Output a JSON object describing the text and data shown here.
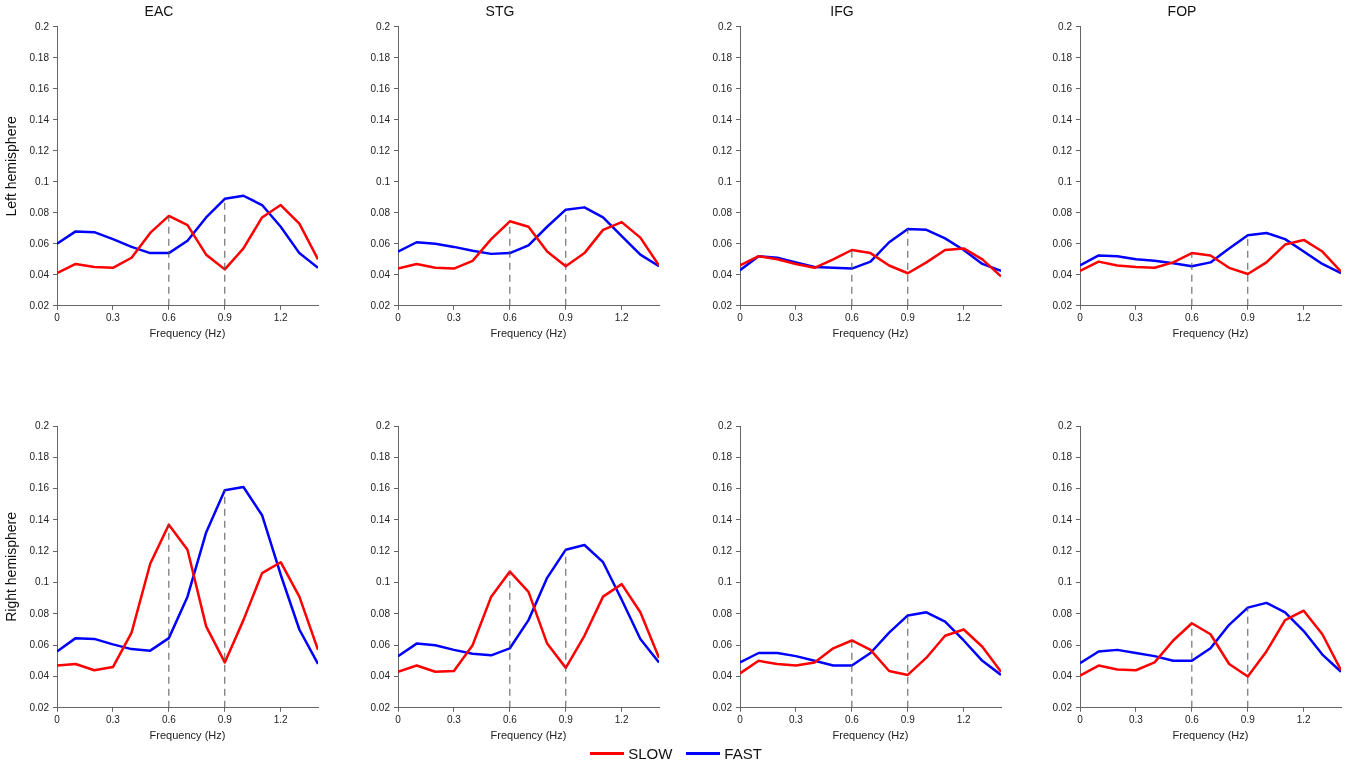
{
  "chart_data": [
    {
      "type": "line",
      "title": "EAC",
      "ylabel": "Left hemisphere",
      "xlabel": "Frequency (Hz)",
      "x": [
        0,
        0.1,
        0.2,
        0.3,
        0.4,
        0.5,
        0.6,
        0.7,
        0.8,
        0.9,
        1,
        1.1,
        1.2,
        1.3,
        1.4
      ],
      "xlim": [
        0,
        1.4
      ],
      "xticks": [
        0,
        0.3,
        0.6,
        0.9,
        1.2
      ],
      "ylim": [
        0.02,
        0.2
      ],
      "yticks": [
        0.02,
        0.04,
        0.06,
        0.08,
        0.1,
        0.12,
        0.14,
        0.16,
        0.18,
        0.2
      ],
      "legend": "bottom",
      "line_style": "solid",
      "ref_lines": [
        {
          "axis": "x",
          "value": 0.6,
          "color": "#555555",
          "line_style": "dashed"
        },
        {
          "axis": "x",
          "value": 0.9,
          "color": "#555555",
          "line_style": "dashed"
        }
      ],
      "series": [
        {
          "name": "SLOW",
          "color": "#ff0000",
          "values": [
            0.041,
            0.047,
            0.045,
            0.0445,
            0.051,
            0.067,
            0.078,
            0.072,
            0.053,
            0.0435,
            0.057,
            0.077,
            0.085,
            0.073,
            0.05
          ]
        },
        {
          "name": "FAST",
          "color": "#0000ff",
          "values": [
            0.06,
            0.068,
            0.0675,
            0.063,
            0.058,
            0.054,
            0.054,
            0.062,
            0.077,
            0.089,
            0.091,
            0.085,
            0.071,
            0.054,
            0.0445
          ]
        }
      ]
    },
    {
      "type": "line",
      "title": "STG",
      "xlabel": "Frequency (Hz)",
      "x": [
        0,
        0.1,
        0.2,
        0.3,
        0.4,
        0.5,
        0.6,
        0.7,
        0.8,
        0.9,
        1,
        1.1,
        1.2,
        1.3,
        1.4
      ],
      "xlim": [
        0,
        1.4
      ],
      "xticks": [
        0,
        0.3,
        0.6,
        0.9,
        1.2
      ],
      "ylim": [
        0.02,
        0.2
      ],
      "yticks": [
        0.02,
        0.04,
        0.06,
        0.08,
        0.1,
        0.12,
        0.14,
        0.16,
        0.18,
        0.2
      ],
      "legend": "bottom",
      "line_style": "solid",
      "ref_lines": [
        {
          "axis": "x",
          "value": 0.6,
          "color": "#555555",
          "line_style": "dashed"
        },
        {
          "axis": "x",
          "value": 0.9,
          "color": "#555555",
          "line_style": "dashed"
        }
      ],
      "series": [
        {
          "name": "SLOW",
          "color": "#ff0000",
          "values": [
            0.044,
            0.047,
            0.0445,
            0.044,
            0.049,
            0.063,
            0.0745,
            0.071,
            0.055,
            0.0455,
            0.054,
            0.069,
            0.074,
            0.064,
            0.046
          ]
        },
        {
          "name": "FAST",
          "color": "#0000ff",
          "values": [
            0.055,
            0.061,
            0.06,
            0.058,
            0.0555,
            0.0535,
            0.054,
            0.059,
            0.071,
            0.082,
            0.0835,
            0.077,
            0.065,
            0.053,
            0.0455
          ]
        }
      ]
    },
    {
      "type": "line",
      "title": "IFG",
      "xlabel": "Frequency (Hz)",
      "x": [
        0,
        0.1,
        0.2,
        0.3,
        0.4,
        0.5,
        0.6,
        0.7,
        0.8,
        0.9,
        1,
        1.1,
        1.2,
        1.3,
        1.4
      ],
      "xlim": [
        0,
        1.4
      ],
      "xticks": [
        0,
        0.3,
        0.6,
        0.9,
        1.2
      ],
      "ylim": [
        0.02,
        0.2
      ],
      "yticks": [
        0.02,
        0.04,
        0.06,
        0.08,
        0.1,
        0.12,
        0.14,
        0.16,
        0.18,
        0.2
      ],
      "legend": "bottom",
      "line_style": "solid",
      "ref_lines": [
        {
          "axis": "x",
          "value": 0.6,
          "color": "#555555",
          "line_style": "dashed"
        },
        {
          "axis": "x",
          "value": 0.9,
          "color": "#555555",
          "line_style": "dashed"
        }
      ],
      "series": [
        {
          "name": "SLOW",
          "color": "#ff0000",
          "values": [
            0.046,
            0.052,
            0.05,
            0.047,
            0.0445,
            0.05,
            0.056,
            0.054,
            0.046,
            0.041,
            0.048,
            0.056,
            0.057,
            0.05,
            0.039
          ]
        },
        {
          "name": "FAST",
          "color": "#0000ff",
          "values": [
            0.043,
            0.052,
            0.051,
            0.048,
            0.045,
            0.0445,
            0.044,
            0.0485,
            0.061,
            0.0695,
            0.069,
            0.0635,
            0.056,
            0.047,
            0.0425
          ]
        }
      ]
    },
    {
      "type": "line",
      "title": "FOP",
      "xlabel": "Frequency (Hz)",
      "x": [
        0,
        0.1,
        0.2,
        0.3,
        0.4,
        0.5,
        0.6,
        0.7,
        0.8,
        0.9,
        1,
        1.1,
        1.2,
        1.3,
        1.4
      ],
      "xlim": [
        0,
        1.4
      ],
      "xticks": [
        0,
        0.3,
        0.6,
        0.9,
        1.2
      ],
      "ylim": [
        0.02,
        0.2
      ],
      "yticks": [
        0.02,
        0.04,
        0.06,
        0.08,
        0.1,
        0.12,
        0.14,
        0.16,
        0.18,
        0.2
      ],
      "legend": "bottom",
      "line_style": "solid",
      "ref_lines": [
        {
          "axis": "x",
          "value": 0.6,
          "color": "#555555",
          "line_style": "dashed"
        },
        {
          "axis": "x",
          "value": 0.9,
          "color": "#555555",
          "line_style": "dashed"
        }
      ],
      "series": [
        {
          "name": "SLOW",
          "color": "#ff0000",
          "values": [
            0.0425,
            0.0485,
            0.046,
            0.045,
            0.0445,
            0.048,
            0.054,
            0.0525,
            0.0445,
            0.0405,
            0.048,
            0.0595,
            0.0625,
            0.055,
            0.042
          ]
        },
        {
          "name": "FAST",
          "color": "#0000ff",
          "values": [
            0.046,
            0.0525,
            0.052,
            0.05,
            0.049,
            0.0475,
            0.0455,
            0.048,
            0.057,
            0.0655,
            0.067,
            0.063,
            0.055,
            0.047,
            0.041
          ]
        }
      ]
    },
    {
      "type": "line",
      "ylabel": "Right hemisphere",
      "xlabel": "Frequency (Hz)",
      "x": [
        0,
        0.1,
        0.2,
        0.3,
        0.4,
        0.5,
        0.6,
        0.7,
        0.8,
        0.9,
        1,
        1.1,
        1.2,
        1.3,
        1.4
      ],
      "xlim": [
        0,
        1.4
      ],
      "xticks": [
        0,
        0.3,
        0.6,
        0.9,
        1.2
      ],
      "ylim": [
        0.02,
        0.2
      ],
      "yticks": [
        0.02,
        0.04,
        0.06,
        0.08,
        0.1,
        0.12,
        0.14,
        0.16,
        0.18,
        0.2
      ],
      "legend": "bottom",
      "line_style": "solid",
      "ref_lines": [
        {
          "axis": "x",
          "value": 0.6,
          "color": "#555555",
          "line_style": "dashed"
        },
        {
          "axis": "x",
          "value": 0.9,
          "color": "#555555",
          "line_style": "dashed"
        }
      ],
      "series": [
        {
          "name": "SLOW",
          "color": "#ff0000",
          "values": [
            0.047,
            0.048,
            0.044,
            0.046,
            0.068,
            0.112,
            0.137,
            0.121,
            0.072,
            0.049,
            0.076,
            0.106,
            0.113,
            0.091,
            0.057
          ]
        },
        {
          "name": "FAST",
          "color": "#0000ff",
          "values": [
            0.056,
            0.0645,
            0.064,
            0.0605,
            0.0575,
            0.0565,
            0.0645,
            0.091,
            0.132,
            0.159,
            0.161,
            0.143,
            0.105,
            0.07,
            0.048
          ]
        }
      ]
    },
    {
      "type": "line",
      "xlabel": "Frequency (Hz)",
      "x": [
        0,
        0.1,
        0.2,
        0.3,
        0.4,
        0.5,
        0.6,
        0.7,
        0.8,
        0.9,
        1,
        1.1,
        1.2,
        1.3,
        1.4
      ],
      "xlim": [
        0,
        1.4
      ],
      "xticks": [
        0,
        0.3,
        0.6,
        0.9,
        1.2
      ],
      "ylim": [
        0.02,
        0.2
      ],
      "yticks": [
        0.02,
        0.04,
        0.06,
        0.08,
        0.1,
        0.12,
        0.14,
        0.16,
        0.18,
        0.2
      ],
      "legend": "bottom",
      "line_style": "solid",
      "ref_lines": [
        {
          "axis": "x",
          "value": 0.6,
          "color": "#555555",
          "line_style": "dashed"
        },
        {
          "axis": "x",
          "value": 0.9,
          "color": "#555555",
          "line_style": "dashed"
        }
      ],
      "series": [
        {
          "name": "SLOW",
          "color": "#ff0000",
          "values": [
            0.043,
            0.047,
            0.043,
            0.0435,
            0.06,
            0.091,
            0.107,
            0.094,
            0.061,
            0.0455,
            0.066,
            0.091,
            0.099,
            0.081,
            0.052
          ]
        },
        {
          "name": "FAST",
          "color": "#0000ff",
          "values": [
            0.053,
            0.061,
            0.06,
            0.057,
            0.0545,
            0.0535,
            0.058,
            0.076,
            0.103,
            0.121,
            0.124,
            0.113,
            0.089,
            0.064,
            0.049
          ]
        }
      ]
    },
    {
      "type": "line",
      "xlabel": "Frequency (Hz)",
      "x": [
        0,
        0.1,
        0.2,
        0.3,
        0.4,
        0.5,
        0.6,
        0.7,
        0.8,
        0.9,
        1,
        1.1,
        1.2,
        1.3,
        1.4
      ],
      "xlim": [
        0,
        1.4
      ],
      "xticks": [
        0,
        0.3,
        0.6,
        0.9,
        1.2
      ],
      "ylim": [
        0.02,
        0.2
      ],
      "yticks": [
        0.02,
        0.04,
        0.06,
        0.08,
        0.1,
        0.12,
        0.14,
        0.16,
        0.18,
        0.2
      ],
      "legend": "bottom",
      "line_style": "solid",
      "ref_lines": [
        {
          "axis": "x",
          "value": 0.6,
          "color": "#555555",
          "line_style": "dashed"
        },
        {
          "axis": "x",
          "value": 0.9,
          "color": "#555555",
          "line_style": "dashed"
        }
      ],
      "series": [
        {
          "name": "SLOW",
          "color": "#ff0000",
          "values": [
            0.042,
            0.05,
            0.048,
            0.047,
            0.049,
            0.058,
            0.063,
            0.057,
            0.0435,
            0.041,
            0.052,
            0.066,
            0.07,
            0.059,
            0.043
          ]
        },
        {
          "name": "FAST",
          "color": "#0000ff",
          "values": [
            0.049,
            0.055,
            0.055,
            0.053,
            0.05,
            0.047,
            0.047,
            0.055,
            0.068,
            0.079,
            0.081,
            0.075,
            0.063,
            0.05,
            0.041
          ]
        }
      ]
    },
    {
      "type": "line",
      "xlabel": "Frequency (Hz)",
      "x": [
        0,
        0.1,
        0.2,
        0.3,
        0.4,
        0.5,
        0.6,
        0.7,
        0.8,
        0.9,
        1,
        1.1,
        1.2,
        1.3,
        1.4
      ],
      "xlim": [
        0,
        1.4
      ],
      "xticks": [
        0,
        0.3,
        0.6,
        0.9,
        1.2
      ],
      "ylim": [
        0.02,
        0.2
      ],
      "yticks": [
        0.02,
        0.04,
        0.06,
        0.08,
        0.1,
        0.12,
        0.14,
        0.16,
        0.18,
        0.2
      ],
      "legend": "bottom",
      "line_style": "solid",
      "ref_lines": [
        {
          "axis": "x",
          "value": 0.6,
          "color": "#555555",
          "line_style": "dashed"
        },
        {
          "axis": "x",
          "value": 0.9,
          "color": "#555555",
          "line_style": "dashed"
        }
      ],
      "series": [
        {
          "name": "SLOW",
          "color": "#ff0000",
          "values": [
            0.0405,
            0.047,
            0.0445,
            0.044,
            0.049,
            0.063,
            0.074,
            0.067,
            0.048,
            0.04,
            0.056,
            0.076,
            0.082,
            0.067,
            0.044
          ]
        },
        {
          "name": "FAST",
          "color": "#0000ff",
          "values": [
            0.0485,
            0.056,
            0.057,
            0.055,
            0.053,
            0.05,
            0.05,
            0.058,
            0.073,
            0.084,
            0.087,
            0.081,
            0.069,
            0.054,
            0.043
          ]
        }
      ]
    }
  ]
}
